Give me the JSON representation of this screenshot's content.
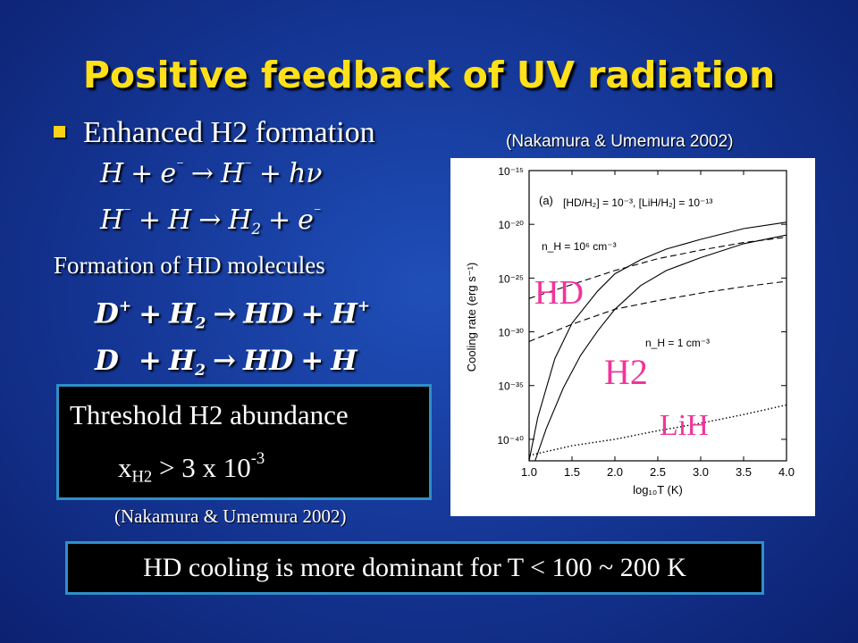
{
  "title": "Positive feedback of UV radiation",
  "bullet": "Enhanced H2 formation",
  "reactions_h2": [
    [
      "H",
      "+",
      "e",
      "⁻",
      "→",
      "H",
      "⁻",
      "+",
      "hν"
    ],
    [
      "H",
      "⁻",
      "+",
      "H",
      "→",
      "H",
      "2",
      "+",
      "e",
      "⁻"
    ]
  ],
  "subhead": "Formation of HD molecules",
  "threshold": {
    "label": "Threshold H2 abundance",
    "value_prefix": "x",
    "value_sub": "H2",
    "value_mid": " > 3 x 10",
    "value_sup": "-3"
  },
  "citation_left": "(Nakamura & Umemura 2002)",
  "citation_right": "(Nakamura & Umemura 2002)",
  "conclusion": "HD cooling is more dominant for T < 100 ~ 200 K",
  "chart_data": {
    "type": "line",
    "panel_label": "(a)",
    "annotation_abundance": "[HD/H₂] = 10⁻³, [LiH/H₂] = 10⁻¹³",
    "annotation_high_density": "n_H = 10⁶ cm⁻³",
    "annotation_low_density": "n_H = 1 cm⁻³",
    "xlabel": "log₁₀T (K)",
    "ylabel": "Cooling rate (erg s⁻¹)",
    "xlim": [
      1.0,
      4.0
    ],
    "ylim_log10": [
      -42,
      -15
    ],
    "x_ticks": [
      "1.0",
      "1.5",
      "2.0",
      "2.5",
      "3.0",
      "3.5",
      "4.0"
    ],
    "y_ticks": [
      {
        "value": -15,
        "label": "10⁻¹⁵"
      },
      {
        "value": -20,
        "label": "10⁻²⁰"
      },
      {
        "value": -25,
        "label": "10⁻²⁵"
      },
      {
        "value": -30,
        "label": "10⁻³⁰"
      },
      {
        "value": -35,
        "label": "10⁻³⁵"
      },
      {
        "value": -40,
        "label": "10⁻⁴⁰"
      }
    ],
    "overlay_labels": [
      {
        "text": "HD",
        "color": "#f0359a"
      },
      {
        "text": "H2",
        "color": "#f0359a"
      },
      {
        "text": "LiH",
        "color": "#f0359a"
      }
    ],
    "series": [
      {
        "style": "solid",
        "x": [
          1.0,
          1.1,
          1.3,
          1.5,
          1.8,
          2.0,
          2.3,
          2.6,
          3.0,
          3.5,
          4.0
        ],
        "y": [
          -42.0,
          -38.0,
          -32.5,
          -29.2,
          -26.2,
          -24.6,
          -23.3,
          -22.3,
          -21.4,
          -20.4,
          -19.8
        ]
      },
      {
        "style": "solid",
        "x": [
          1.07,
          1.2,
          1.4,
          1.6,
          1.8,
          2.0,
          2.3,
          2.6,
          3.0,
          3.5,
          4.0
        ],
        "y": [
          -42.0,
          -39.0,
          -35.2,
          -32.2,
          -29.9,
          -27.9,
          -25.7,
          -24.3,
          -23.1,
          -21.8,
          -21.0
        ]
      },
      {
        "style": "dashed",
        "x": [
          1.0,
          1.5,
          2.0,
          2.5,
          3.0,
          3.5,
          4.0
        ],
        "y": [
          -26.9,
          -25.6,
          -24.3,
          -23.2,
          -22.4,
          -21.7,
          -21.2
        ]
      },
      {
        "style": "dashed",
        "x": [
          1.0,
          1.5,
          2.0,
          2.5,
          3.0,
          3.5,
          4.0
        ],
        "y": [
          -30.9,
          -29.3,
          -27.9,
          -27.1,
          -26.4,
          -25.8,
          -25.3
        ]
      },
      {
        "style": "dotted",
        "x": [
          1.0,
          1.5,
          2.0,
          2.5,
          3.0,
          3.5,
          4.0
        ],
        "y": [
          -41.5,
          -40.6,
          -40.0,
          -39.2,
          -38.5,
          -37.7,
          -36.8
        ]
      }
    ]
  }
}
